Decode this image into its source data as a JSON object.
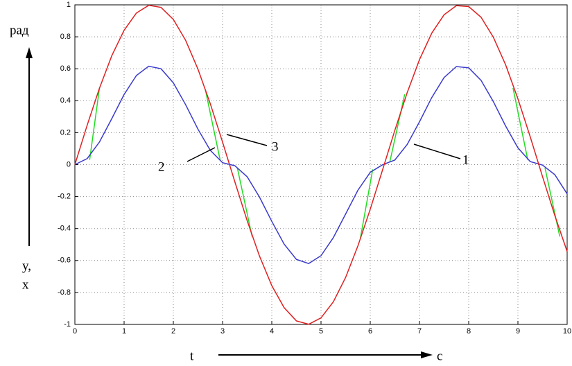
{
  "chart_data": {
    "type": "line",
    "annotations": {
      "y_unit": "рад",
      "y_name_1": "y,",
      "y_name_2": "x",
      "x_name": "t",
      "x_unit": "c",
      "label_1": "1",
      "label_2": "2",
      "label_3": "3"
    },
    "x": [
      0,
      0.25,
      0.5,
      0.75,
      1,
      1.25,
      1.5,
      1.75,
      2,
      2.25,
      2.5,
      2.75,
      3,
      3.25,
      3.5,
      3.75,
      4,
      4.25,
      4.5,
      4.75,
      5,
      5.25,
      5.5,
      5.75,
      6,
      6.25,
      6.5,
      6.75,
      7,
      7.25,
      7.5,
      7.75,
      8,
      8.25,
      8.5,
      8.75,
      9,
      9.25,
      9.5,
      9.75,
      10
    ],
    "series": [
      {
        "color": "#e02020",
        "values": [
          0,
          0.247,
          0.479,
          0.682,
          0.841,
          0.949,
          0.997,
          0.984,
          0.909,
          0.778,
          0.598,
          0.382,
          0.141,
          -0.108,
          -0.351,
          -0.572,
          -0.757,
          -0.895,
          -0.978,
          -0.999,
          -0.959,
          -0.859,
          -0.706,
          -0.508,
          -0.279,
          -0.033,
          0.215,
          0.45,
          0.657,
          0.823,
          0.938,
          0.995,
          0.989,
          0.923,
          0.798,
          0.625,
          0.412,
          0.174,
          -0.075,
          -0.319,
          -0.544
        ]
      },
      {
        "color": "#3a3acc",
        "values": [
          0,
          0.038,
          0.142,
          0.288,
          0.439,
          0.558,
          0.616,
          0.6,
          0.512,
          0.375,
          0.222,
          0.09,
          0.012,
          -0.007,
          -0.076,
          -0.203,
          -0.355,
          -0.497,
          -0.593,
          -0.619,
          -0.57,
          -0.457,
          -0.309,
          -0.16,
          -0.048,
          -0.001,
          0.029,
          0.126,
          0.268,
          0.42,
          0.545,
          0.614,
          0.606,
          0.528,
          0.395,
          0.242,
          0.105,
          0.019,
          -0.003,
          -0.063,
          -0.183
        ]
      },
      {
        "color": "#22dd22",
        "x": [
          0.3,
          0.5,
          null,
          2.65,
          2.95,
          null,
          3.3,
          3.6,
          null,
          5.8,
          6.05,
          null,
          6.4,
          6.7,
          null,
          8.9,
          9.2,
          null,
          9.55,
          9.85
        ],
        "values": [
          0.03,
          0.48,
          null,
          0.47,
          0.03,
          null,
          -0.02,
          -0.45,
          null,
          -0.46,
          -0.03,
          null,
          0.02,
          0.44,
          null,
          0.48,
          0.03,
          null,
          -0.02,
          -0.45
        ]
      }
    ],
    "xlim": [
      0,
      10
    ],
    "xticks": [
      0,
      1,
      2,
      3,
      4,
      5,
      6,
      7,
      8,
      9,
      10
    ],
    "ylim": [
      -1,
      1
    ],
    "yticks": [
      -1,
      -0.8,
      -0.6,
      -0.4,
      -0.2,
      0,
      0.2,
      0.4,
      0.6,
      0.8,
      1
    ],
    "grid": true
  }
}
